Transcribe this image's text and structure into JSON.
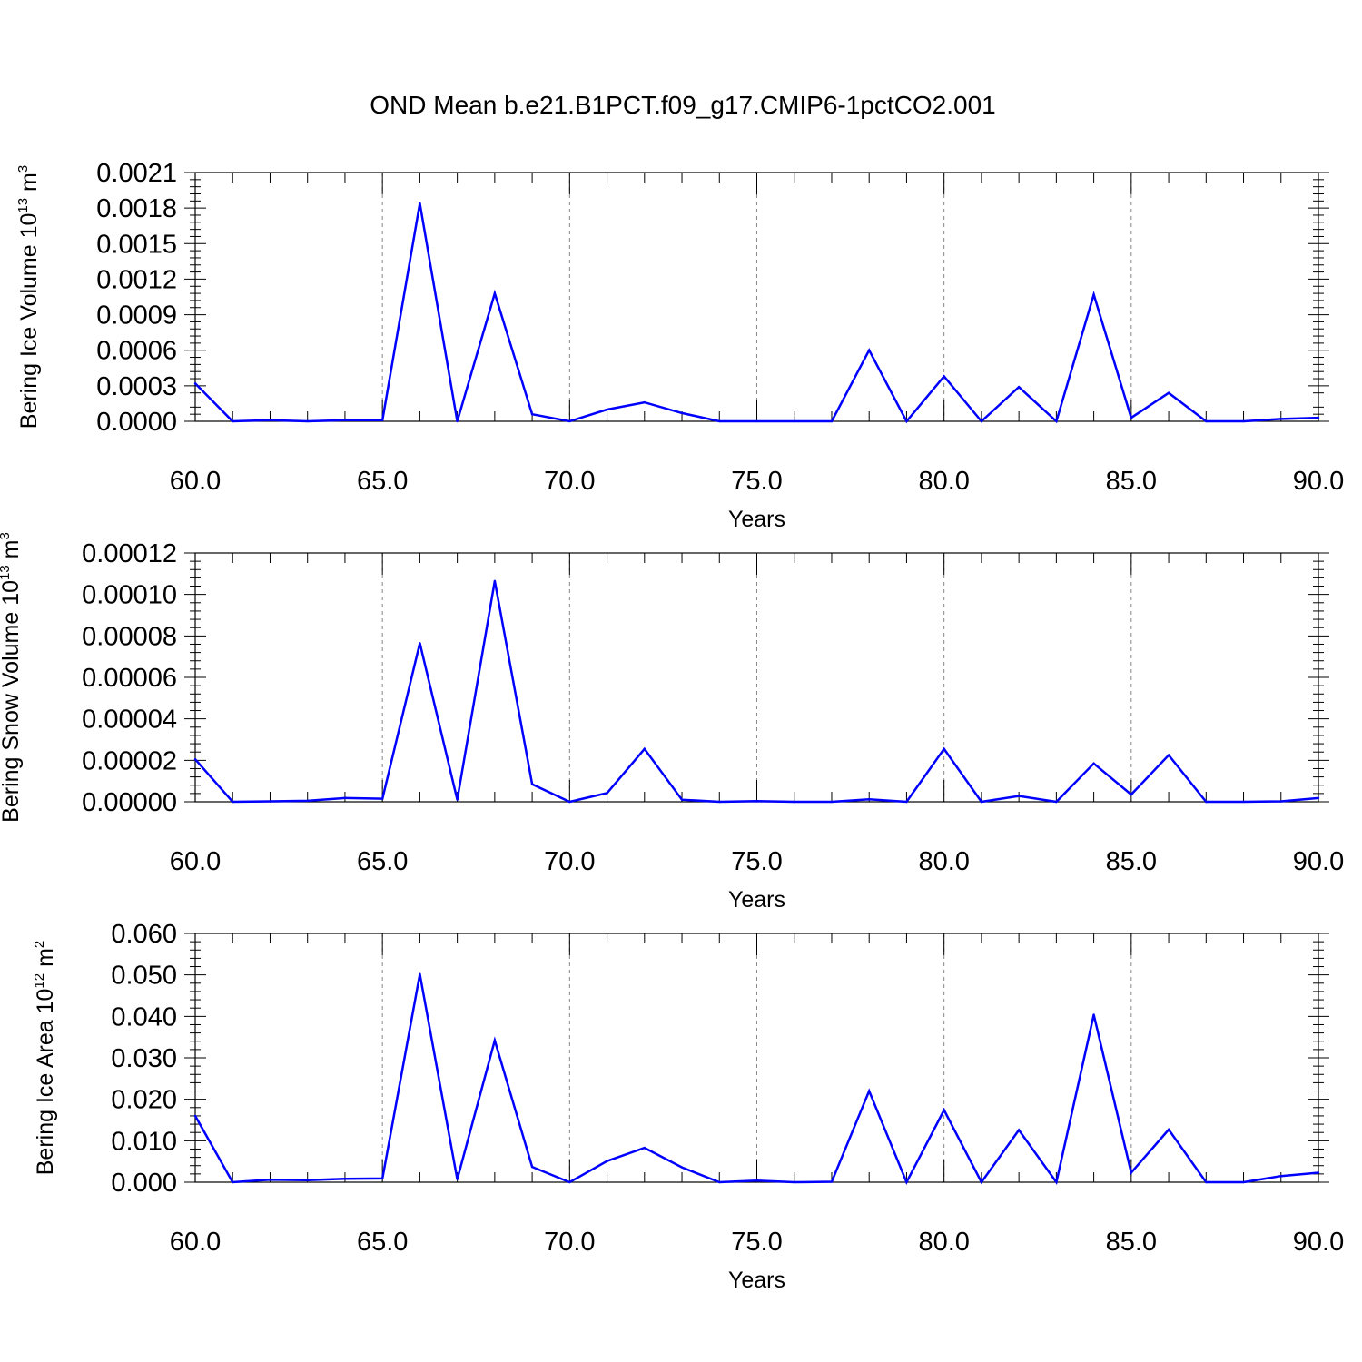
{
  "title": "OND Mean b.e21.B1PCT.f09_g17.CMIP6-1pctCO2.001",
  "colors": {
    "line": "#0000ff",
    "axis": "#000000",
    "grid": "#888888"
  },
  "chart_data": [
    {
      "type": "line",
      "xlabel": "Years",
      "ylabel": "Bering Ice Volume 10",
      "ylabel_exp": "13",
      "ylabel_unit": " m",
      "ylabel_unit_exp": "3",
      "xlim": [
        60,
        90
      ],
      "ylim": [
        0,
        0.0021
      ],
      "xticks": [
        "60.0",
        "65.0",
        "70.0",
        "75.0",
        "80.0",
        "85.0",
        "90.0"
      ],
      "yticks": [
        "0.0000",
        "0.0003",
        "0.0006",
        "0.0009",
        "0.0012",
        "0.0015",
        "0.0018",
        "0.0021"
      ],
      "grid": "x-major-dashed",
      "series": [
        {
          "x": [
            60,
            61,
            62,
            63,
            64,
            65,
            66,
            67,
            68,
            69,
            70,
            71,
            72,
            73,
            74,
            75,
            76,
            77,
            78,
            79,
            80,
            81,
            82,
            83,
            84,
            85,
            86,
            87,
            88,
            89,
            90
          ],
          "values": [
            0.00032,
            0.0,
            1e-05,
            0.0,
            1e-05,
            1e-05,
            0.00184,
            0.0,
            0.00108,
            6e-05,
            0.0,
            0.0001,
            0.00016,
            7e-05,
            0.0,
            0.0,
            0.0,
            0.0,
            0.0006,
            0.0,
            0.00038,
            0.0,
            0.00029,
            0.0,
            0.00107,
            3e-05,
            0.00024,
            0.0,
            0.0,
            2e-05,
            3e-05
          ]
        }
      ]
    },
    {
      "type": "line",
      "xlabel": "Years",
      "ylabel": "Bering Snow Volume 10",
      "ylabel_exp": "13",
      "ylabel_unit": " m",
      "ylabel_unit_exp": "3",
      "xlim": [
        60,
        90
      ],
      "ylim": [
        0,
        0.00012
      ],
      "xticks": [
        "60.0",
        "65.0",
        "70.0",
        "75.0",
        "80.0",
        "85.0",
        "90.0"
      ],
      "yticks": [
        "0.00000",
        "0.00002",
        "0.00004",
        "0.00006",
        "0.00008",
        "0.00010",
        "0.00012"
      ],
      "grid": "x-major-dashed",
      "series": [
        {
          "x": [
            60,
            61,
            62,
            63,
            64,
            65,
            66,
            67,
            68,
            69,
            70,
            71,
            72,
            73,
            74,
            75,
            76,
            77,
            78,
            79,
            80,
            81,
            82,
            83,
            84,
            85,
            86,
            87,
            88,
            89,
            90
          ],
          "values": [
            2.05e-05,
            0.0,
            2e-07,
            5e-07,
            1.8e-06,
            1.5e-06,
            7.65e-05,
            1e-06,
            0.0001065,
            8.5e-06,
            0.0,
            4.2e-06,
            2.55e-05,
            1e-06,
            0.0,
            3e-07,
            0.0,
            0.0,
            1.2e-06,
            0.0,
            2.55e-05,
            0.0,
            2.8e-06,
            0.0,
            1.85e-05,
            3.5e-06,
            2.25e-05,
            0.0,
            0.0,
            2e-07,
            1.8e-06
          ]
        }
      ]
    },
    {
      "type": "line",
      "xlabel": "Years",
      "ylabel": "Bering Ice Area 10",
      "ylabel_exp": "12",
      "ylabel_unit": " m",
      "ylabel_unit_exp": "2",
      "xlim": [
        60,
        90
      ],
      "ylim": [
        0,
        0.06
      ],
      "xticks": [
        "60.0",
        "65.0",
        "70.0",
        "75.0",
        "80.0",
        "85.0",
        "90.0"
      ],
      "yticks": [
        "0.000",
        "0.010",
        "0.020",
        "0.030",
        "0.040",
        "0.050",
        "0.060"
      ],
      "grid": "x-major-dashed",
      "series": [
        {
          "x": [
            60,
            61,
            62,
            63,
            64,
            65,
            66,
            67,
            68,
            69,
            70,
            71,
            72,
            73,
            74,
            75,
            76,
            77,
            78,
            79,
            80,
            81,
            82,
            83,
            84,
            85,
            86,
            87,
            88,
            89,
            90
          ],
          "values": [
            0.016,
            0.0,
            0.0006,
            0.0005,
            0.0008,
            0.0009,
            0.0502,
            0.0007,
            0.0342,
            0.0037,
            0.0,
            0.0051,
            0.0083,
            0.0036,
            0.0,
            0.0004,
            0.0,
            0.0001,
            0.022,
            0.0,
            0.0174,
            0.0,
            0.0126,
            0.0,
            0.0404,
            0.0023,
            0.0127,
            0.0,
            0.0,
            0.0015,
            0.0023
          ]
        }
      ]
    }
  ]
}
